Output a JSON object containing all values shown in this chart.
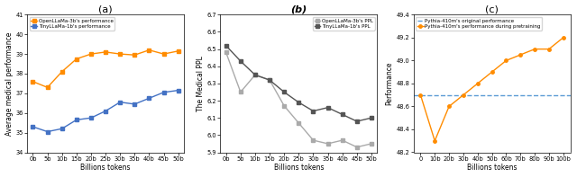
{
  "subplot_a": {
    "x_labels": [
      "0b",
      "5b",
      "10b",
      "15b",
      "20b",
      "25b",
      "30b",
      "35b",
      "40b",
      "45b",
      "50b"
    ],
    "x_vals": [
      0,
      5,
      10,
      15,
      20,
      25,
      30,
      35,
      40,
      45,
      50
    ],
    "openllama_3b": [
      37.6,
      37.3,
      38.1,
      38.75,
      39.0,
      39.1,
      39.0,
      38.95,
      39.2,
      39.0,
      39.15
    ],
    "tinyllama_1b": [
      35.3,
      35.05,
      35.2,
      35.65,
      35.75,
      36.1,
      36.55,
      36.45,
      36.75,
      37.05,
      37.15
    ],
    "ylim": [
      34,
      41
    ],
    "ylabel": "Average medical performance",
    "xlabel": "Billions tokens",
    "title": "(a)",
    "legend1": "OpenLLaMa-3b's performance",
    "legend2": "TinyLLaMa-1b's performance",
    "color1": "#FF8C00",
    "color2": "#4472C4",
    "marker1": "s",
    "marker2": "s"
  },
  "subplot_b": {
    "x_labels": [
      "0b",
      "5b",
      "10b",
      "15b",
      "20b",
      "25b",
      "30b",
      "35b",
      "40b",
      "45b",
      "50b"
    ],
    "x_vals": [
      0,
      5,
      10,
      15,
      20,
      25,
      30,
      35,
      40,
      45,
      50
    ],
    "openllama_3b_ppl": [
      6.48,
      6.25,
      6.35,
      6.32,
      6.17,
      6.07,
      5.97,
      5.95,
      5.97,
      5.93,
      5.95
    ],
    "tinyllama_1b_ppl": [
      6.52,
      6.43,
      6.35,
      6.32,
      6.25,
      6.19,
      6.14,
      6.16,
      6.12,
      6.08,
      6.1
    ],
    "ylim": [
      5.9,
      6.7
    ],
    "ylabel": "The Medical PPL",
    "xlabel": "Billions tokens",
    "title": "(b)",
    "legend1": "OpenLLaMa-3b's PPL",
    "legend2": "TinyLLaMa-1b's PPL",
    "color1": "#AAAAAA",
    "color2": "#555555"
  },
  "subplot_c": {
    "x_labels": [
      "0",
      "10b",
      "20b",
      "30b",
      "40b",
      "50b",
      "60b",
      "70b",
      "80b",
      "90b",
      "100b"
    ],
    "x_vals": [
      0,
      10,
      20,
      30,
      40,
      50,
      60,
      70,
      80,
      90,
      100
    ],
    "pythia_perf": [
      48.7,
      48.3,
      48.6,
      48.7,
      48.8,
      48.9,
      49.0,
      49.05,
      49.1,
      49.1,
      49.2
    ],
    "pythia_orig": 48.7,
    "ylim": [
      48.2,
      49.4
    ],
    "ylabel": "Performance",
    "xlabel": "Billions tokens",
    "title": "(c)",
    "legend1": "Pythia-410m's original performance",
    "legend2": "Pythia-410m's performance during pretraining",
    "color_orig": "#5B9BD5",
    "color_perf": "#FF8C00"
  }
}
